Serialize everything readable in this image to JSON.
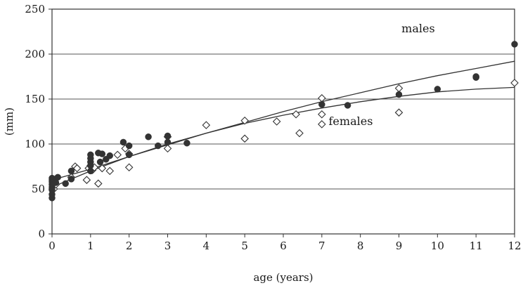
{
  "chart_data": {
    "type": "scatter",
    "xlabel": "age (years)",
    "ylabel": "(mm)",
    "xlim": [
      0,
      12
    ],
    "ylim": [
      0,
      250
    ],
    "x_ticks": [
      "0",
      "1",
      "2",
      "3",
      "4",
      "5",
      "6",
      "7",
      "8",
      "9",
      "10",
      "11",
      "12"
    ],
    "y_ticks": [
      "0",
      "50",
      "100",
      "150",
      "200",
      "250"
    ],
    "grid": "horizontal",
    "annotations": [
      {
        "text": "males",
        "x": 9.5,
        "y": 228
      },
      {
        "text": "females",
        "x": 7.75,
        "y": 125
      }
    ],
    "series": [
      {
        "name": "males",
        "marker": "filled-circle",
        "color": "#333333",
        "points": [
          [
            0.0,
            40
          ],
          [
            0.0,
            44
          ],
          [
            0.0,
            49
          ],
          [
            0.0,
            52
          ],
          [
            0.0,
            55
          ],
          [
            0.0,
            58
          ],
          [
            0.0,
            60
          ],
          [
            0.0,
            62
          ],
          [
            0.05,
            61
          ],
          [
            0.1,
            57
          ],
          [
            0.15,
            63
          ],
          [
            0.35,
            56
          ],
          [
            0.5,
            61
          ],
          [
            0.5,
            70
          ],
          [
            1.0,
            70
          ],
          [
            1.0,
            76
          ],
          [
            1.0,
            80
          ],
          [
            1.0,
            84
          ],
          [
            1.0,
            88
          ],
          [
            1.2,
            90
          ],
          [
            1.25,
            80
          ],
          [
            1.3,
            89
          ],
          [
            1.4,
            83
          ],
          [
            1.5,
            87
          ],
          [
            1.85,
            102
          ],
          [
            2.0,
            88
          ],
          [
            2.0,
            98
          ],
          [
            2.5,
            108
          ],
          [
            2.75,
            98
          ],
          [
            3.0,
            102
          ],
          [
            3.0,
            109
          ],
          [
            3.5,
            101
          ],
          [
            7.0,
            144
          ],
          [
            7.67,
            143
          ],
          [
            9.0,
            155
          ],
          [
            10.0,
            161
          ],
          [
            11.0,
            174
          ],
          [
            11.0,
            175
          ],
          [
            12.0,
            211
          ]
        ],
        "fit": [
          [
            0,
            60
          ],
          [
            1,
            72
          ],
          [
            2,
            86
          ],
          [
            3,
            99
          ],
          [
            4,
            112
          ],
          [
            5,
            124
          ],
          [
            6,
            136
          ],
          [
            7,
            147
          ],
          [
            8,
            157
          ],
          [
            9,
            167
          ],
          [
            10,
            176
          ],
          [
            11,
            184
          ],
          [
            12,
            192
          ]
        ]
      },
      {
        "name": "females",
        "marker": "open-diamond",
        "color": "#333333",
        "points": [
          [
            0.05,
            50
          ],
          [
            0.1,
            55
          ],
          [
            0.5,
            63
          ],
          [
            0.6,
            75
          ],
          [
            0.65,
            73
          ],
          [
            0.9,
            60
          ],
          [
            0.95,
            73
          ],
          [
            1.0,
            76
          ],
          [
            1.05,
            71
          ],
          [
            1.1,
            74
          ],
          [
            1.2,
            56
          ],
          [
            1.3,
            73
          ],
          [
            1.5,
            70
          ],
          [
            1.7,
            88
          ],
          [
            1.9,
            95
          ],
          [
            2.0,
            74
          ],
          [
            2.0,
            89
          ],
          [
            3.0,
            95
          ],
          [
            3.0,
            108
          ],
          [
            4.0,
            121
          ],
          [
            5.0,
            106
          ],
          [
            5.0,
            126
          ],
          [
            5.83,
            125
          ],
          [
            6.33,
            133
          ],
          [
            6.42,
            112
          ],
          [
            7.0,
            122
          ],
          [
            7.0,
            133
          ],
          [
            7.0,
            151
          ],
          [
            9.0,
            135
          ],
          [
            9.0,
            162
          ],
          [
            12.0,
            168
          ]
        ],
        "fit": [
          [
            0,
            52
          ],
          [
            1,
            70
          ],
          [
            2,
            86
          ],
          [
            3,
            100
          ],
          [
            4,
            112
          ],
          [
            5,
            123
          ],
          [
            6,
            132
          ],
          [
            7,
            140
          ],
          [
            8,
            147
          ],
          [
            9,
            153
          ],
          [
            10,
            158
          ],
          [
            11,
            161
          ],
          [
            12,
            163
          ]
        ]
      }
    ]
  }
}
